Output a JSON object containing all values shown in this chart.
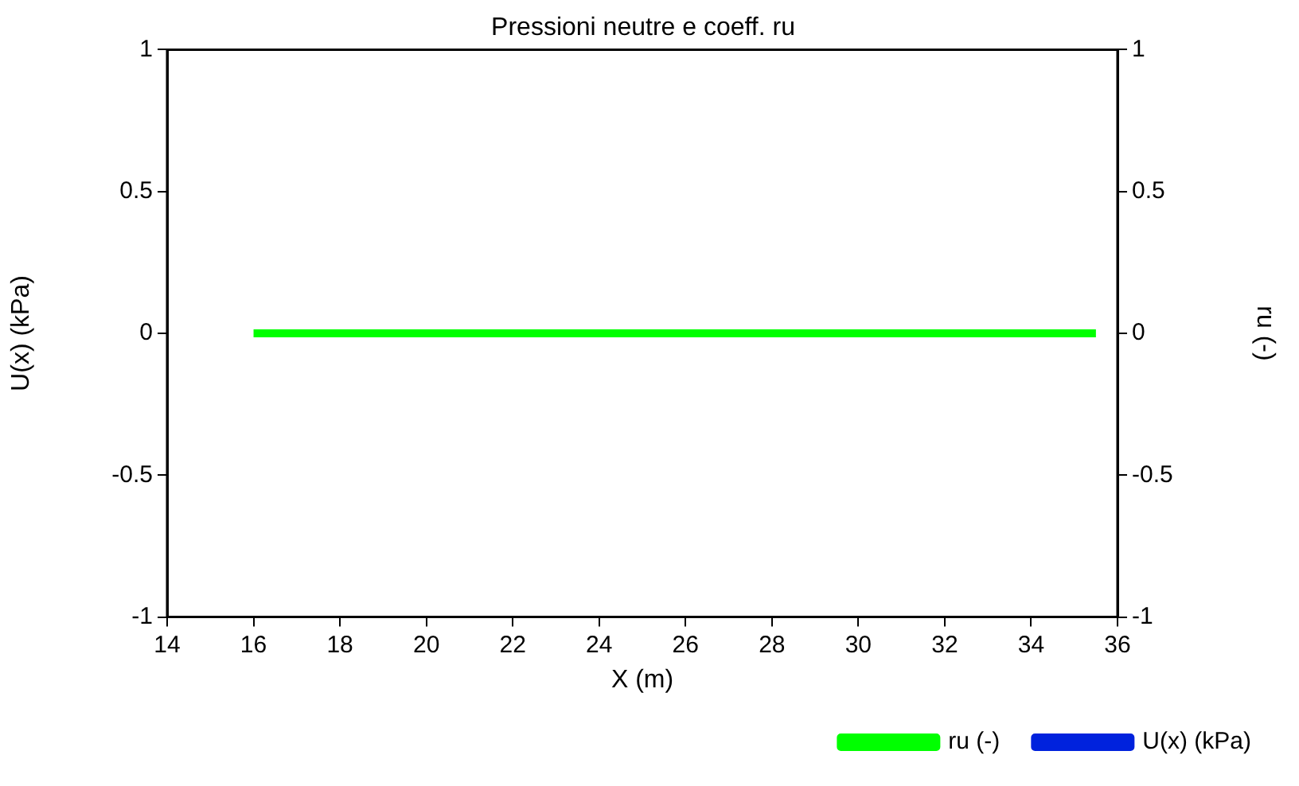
{
  "chart_data": {
    "type": "line",
    "title": "Pressioni neutre e coeff. ru",
    "xlabel": "X (m)",
    "ylabel": "U(x) (kPa)",
    "y2label": "ru (-)",
    "x": [
      16,
      35.5
    ],
    "series": [
      {
        "name": "U(x) (kPa)",
        "color": "#0022dd",
        "values": [
          null,
          null
        ]
      },
      {
        "name": "ru (-)",
        "color": "#00ff00",
        "values": [
          0,
          0
        ],
        "axis": "y2"
      }
    ],
    "xlim": [
      14,
      36
    ],
    "xticks": [
      14,
      16,
      18,
      20,
      22,
      24,
      26,
      28,
      30,
      32,
      34,
      36
    ],
    "ylim": [
      -1,
      1
    ],
    "yticks": [
      -1,
      -0.5,
      0,
      0.5,
      1
    ],
    "y2lim": [
      -1,
      1
    ],
    "y2ticks": [
      -1,
      -0.5,
      0,
      0.5,
      1
    ],
    "grid": false,
    "legend": "bottom right",
    "marker": "none",
    "line_style": "solid"
  }
}
